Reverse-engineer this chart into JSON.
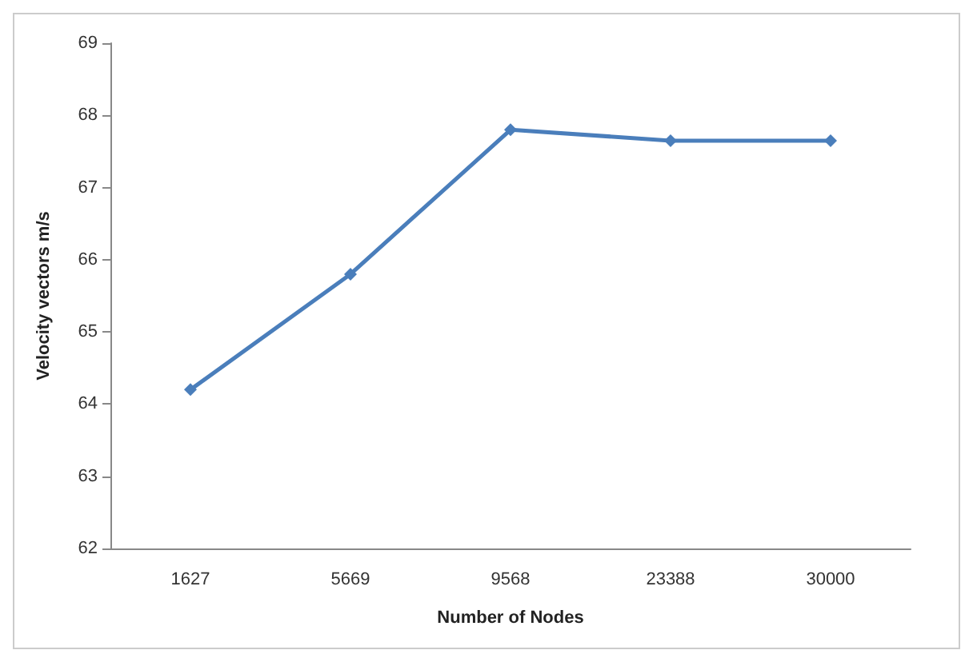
{
  "chart_data": {
    "type": "line",
    "xlabel": "Number of Nodes",
    "ylabel": "Velocity vectors m/s",
    "categories": [
      "1627",
      "5669",
      "9568",
      "23388",
      "30000"
    ],
    "series": [
      {
        "color": "#4a7ebb",
        "values": [
          64.2,
          65.8,
          67.8,
          67.65,
          67.65
        ]
      }
    ],
    "ylim": [
      62,
      69
    ],
    "yticks": [
      62,
      63,
      64,
      65,
      66,
      67,
      68,
      69
    ],
    "grid": false,
    "marker": "diamond",
    "line_style": "solid"
  }
}
